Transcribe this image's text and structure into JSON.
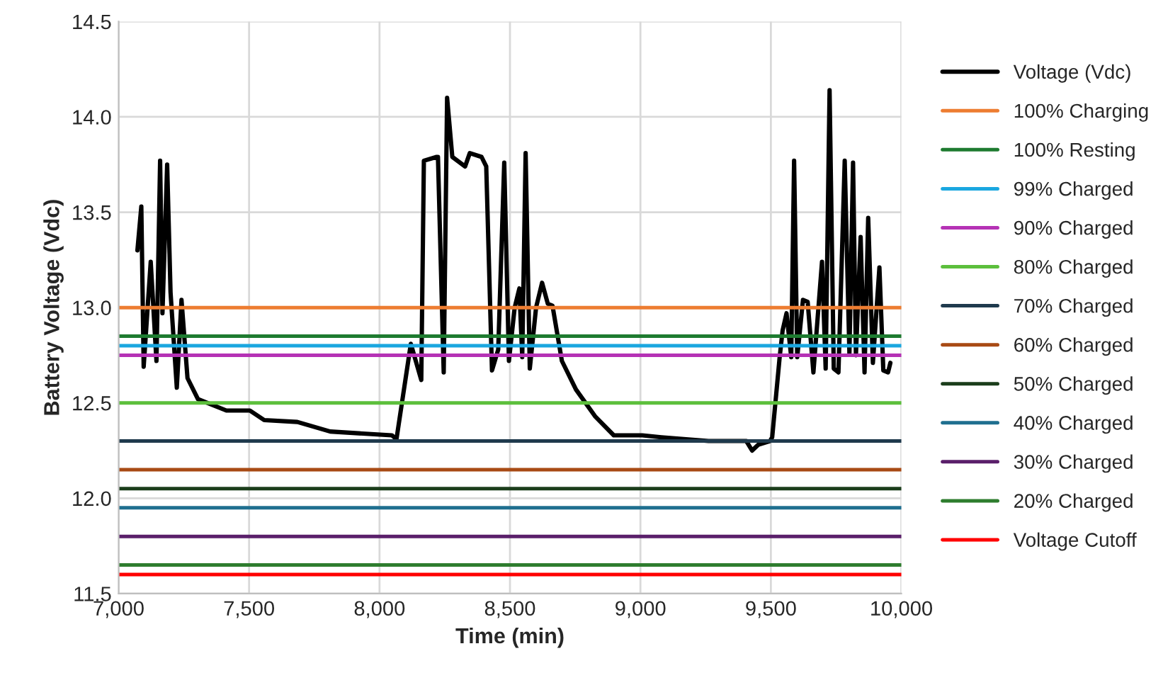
{
  "chart_data": {
    "type": "line",
    "xlabel": "Time (min)",
    "ylabel": "Battery Voltage (Vdc)",
    "xlim": [
      7000,
      10000
    ],
    "ylim": [
      11.5,
      14.5
    ],
    "xticks": [
      {
        "value": 7000,
        "label": "7,000"
      },
      {
        "value": 7500,
        "label": "7,500"
      },
      {
        "value": 8000,
        "label": "8,000"
      },
      {
        "value": 8500,
        "label": "8,500"
      },
      {
        "value": 9000,
        "label": "9,000"
      },
      {
        "value": 9500,
        "label": "9,500"
      },
      {
        "value": 10000,
        "label": "10,000"
      }
    ],
    "yticks": [
      {
        "value": 11.5,
        "label": "11.5"
      },
      {
        "value": 12.0,
        "label": "12.0"
      },
      {
        "value": 12.5,
        "label": "12.5"
      },
      {
        "value": 13.0,
        "label": "13.0"
      },
      {
        "value": 13.5,
        "label": "13.5"
      },
      {
        "value": 14.0,
        "label": "14.0"
      },
      {
        "value": 14.5,
        "label": "14.5"
      }
    ],
    "grid": true,
    "legend": "right",
    "marker": "none",
    "line_style": "solid",
    "series": [
      {
        "name": "Voltage (Vdc)",
        "color": "#000000",
        "x": [
          7072,
          7087,
          7096,
          7123,
          7145,
          7159,
          7168,
          7186,
          7199,
          7223,
          7241,
          7264,
          7304,
          7413,
          7503,
          7558,
          7685,
          7811,
          8047,
          8065,
          8120,
          8160,
          8170,
          8219,
          8224,
          8246,
          8259,
          8279,
          8328,
          8346,
          8391,
          8409,
          8431,
          8455,
          8478,
          8496,
          8518,
          8536,
          8547,
          8560,
          8576,
          8600,
          8623,
          8645,
          8663,
          8699,
          8753,
          8826,
          8898,
          9007,
          9080,
          9261,
          9406,
          9428,
          9451,
          9497,
          9505,
          9533,
          9545,
          9560,
          9578,
          9589,
          9601,
          9623,
          9641,
          9663,
          9696,
          9710,
          9725,
          9741,
          9759,
          9783,
          9801,
          9815,
          9826,
          9844,
          9859,
          9873,
          9891,
          9916,
          9931,
          9949,
          9958
        ],
        "values": [
          13.3,
          13.53,
          12.69,
          13.24,
          12.72,
          13.77,
          12.97,
          13.75,
          13.08,
          12.58,
          13.04,
          12.63,
          12.52,
          12.46,
          12.46,
          12.41,
          12.4,
          12.35,
          12.33,
          12.31,
          12.81,
          12.62,
          13.77,
          13.79,
          13.79,
          12.66,
          14.1,
          13.79,
          13.74,
          13.81,
          13.79,
          13.74,
          12.67,
          12.78,
          13.76,
          12.72,
          13.0,
          13.1,
          12.74,
          13.81,
          12.68,
          13.0,
          13.13,
          13.02,
          13.01,
          12.72,
          12.57,
          12.43,
          12.33,
          12.33,
          12.32,
          12.3,
          12.3,
          12.25,
          12.28,
          12.3,
          12.32,
          12.73,
          12.88,
          12.97,
          12.74,
          13.77,
          12.74,
          13.04,
          13.03,
          12.66,
          13.24,
          12.68,
          14.14,
          12.68,
          12.66,
          13.77,
          12.76,
          13.76,
          12.75,
          13.37,
          12.66,
          13.47,
          12.71,
          13.21,
          12.67,
          12.66,
          12.71
        ]
      }
    ],
    "ref_lines": [
      {
        "axis": "y",
        "value": 13.0,
        "label": "100% Charging",
        "color": "#ed7d31"
      },
      {
        "axis": "y",
        "value": 12.85,
        "label": "100% Resting",
        "color": "#1e7b30"
      },
      {
        "axis": "y",
        "value": 12.8,
        "label": "99% Charged",
        "color": "#1aa7e0"
      },
      {
        "axis": "y",
        "value": 12.75,
        "label": "90% Charged",
        "color": "#b532b5"
      },
      {
        "axis": "y",
        "value": 12.5,
        "label": "80% Charged",
        "color": "#5cbf3c"
      },
      {
        "axis": "y",
        "value": 12.3,
        "label": "70% Charged",
        "color": "#1f3a4d"
      },
      {
        "axis": "y",
        "value": 12.15,
        "label": "60% Charged",
        "color": "#a84a14"
      },
      {
        "axis": "y",
        "value": 12.05,
        "label": "50% Charged",
        "color": "#1b3d1b"
      },
      {
        "axis": "y",
        "value": 11.95,
        "label": "40% Charged",
        "color": "#1f6f8f"
      },
      {
        "axis": "y",
        "value": 11.8,
        "label": "30% Charged",
        "color": "#5a1f6a"
      },
      {
        "axis": "y",
        "value": 11.65,
        "label": "20% Charged",
        "color": "#2e7d2e"
      },
      {
        "axis": "y",
        "value": 11.6,
        "label": "Voltage Cutoff",
        "color": "#ff0000"
      }
    ]
  }
}
